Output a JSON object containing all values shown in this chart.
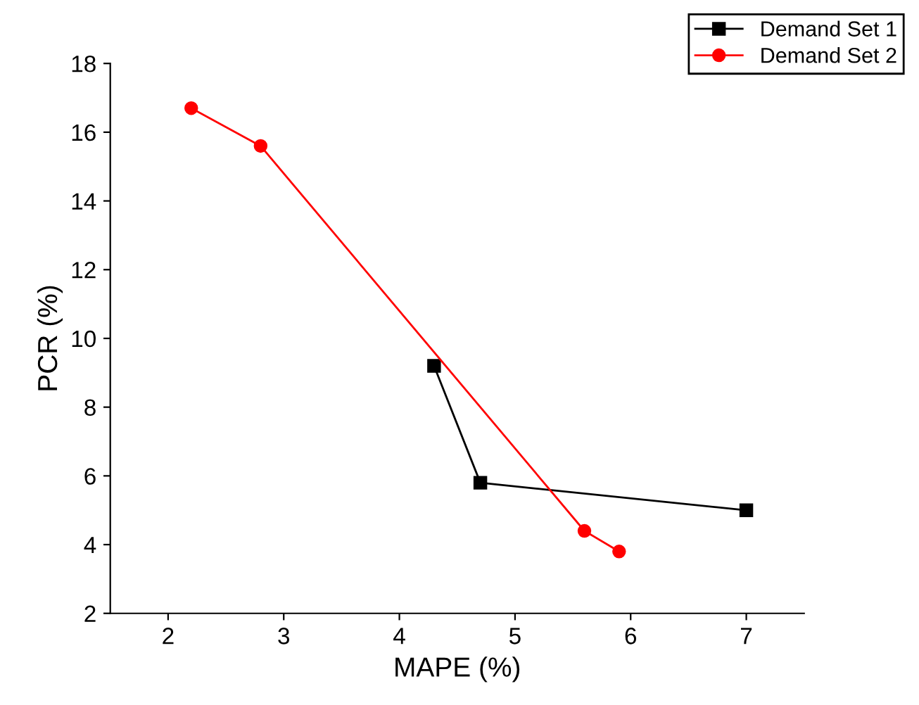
{
  "chart_data": {
    "type": "line",
    "xlabel": "MAPE (%)",
    "ylabel": "PCR (%)",
    "xlim": [
      1.5,
      7.5
    ],
    "xticks": [
      2,
      3,
      4,
      5,
      6,
      7
    ],
    "ylim": [
      2,
      18
    ],
    "yticks": [
      2,
      4,
      6,
      8,
      10,
      12,
      14,
      16,
      18
    ],
    "grid": false,
    "legend": "top right",
    "line_style": "solid",
    "series": [
      {
        "name": "Demand Set 1",
        "color": "#000000",
        "marker": "square",
        "x": [
          4.3,
          4.7,
          7.0
        ],
        "values": [
          9.2,
          5.8,
          5.0
        ]
      },
      {
        "name": "Demand Set 2",
        "color": "#ff0000",
        "marker": "circle",
        "x": [
          2.2,
          2.8,
          5.6,
          5.9
        ],
        "values": [
          16.7,
          15.6,
          4.4,
          3.8
        ]
      }
    ]
  }
}
